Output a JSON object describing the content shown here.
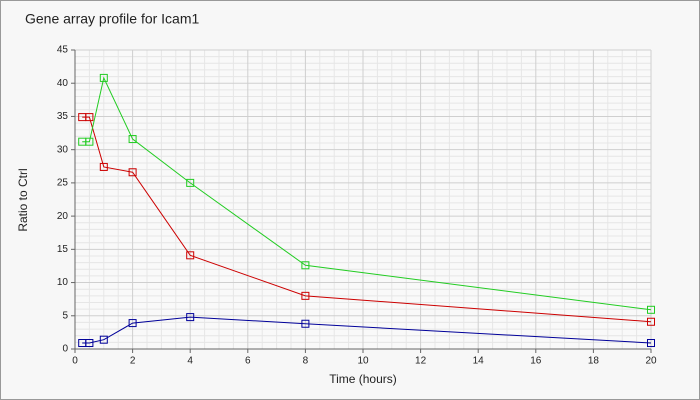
{
  "chart_data": {
    "type": "line",
    "title": "Gene array profile for Icam1",
    "x_label": "Time (hours)",
    "y_label": "Ratio to Ctrl",
    "x": [
      0.25,
      0.5,
      1,
      2,
      4,
      8,
      20
    ],
    "series": [
      {
        "color": "#cc0000",
        "values": [
          34.9,
          34.9,
          27.4,
          26.6,
          14.1,
          8.0,
          4.1
        ]
      },
      {
        "color": "#22cc22",
        "values": [
          31.2,
          31.2,
          40.8,
          31.6,
          25.0,
          12.6,
          5.9
        ]
      },
      {
        "color": "#000099",
        "values": [
          0.9,
          0.9,
          1.4,
          3.9,
          4.8,
          3.8,
          0.9
        ]
      }
    ],
    "xlim": [
      0,
      20
    ],
    "xticks": [
      0,
      2,
      4,
      6,
      8,
      10,
      12,
      14,
      16,
      18,
      20
    ],
    "ylim": [
      0,
      45
    ],
    "yticks": [
      0,
      5,
      10,
      15,
      20,
      25,
      30,
      35,
      40,
      45
    ],
    "grid": true,
    "minor_grid": true,
    "markers": "square"
  }
}
